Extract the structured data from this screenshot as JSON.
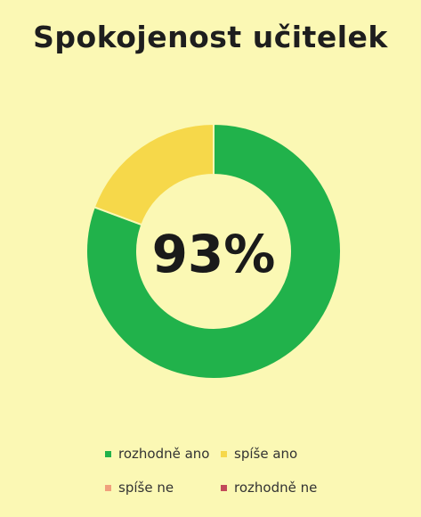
{
  "chart_data": {
    "type": "pie",
    "title": "Spokojenost učitelek",
    "center_label": "93%",
    "categories": [
      "rozhodně ano",
      "spíše ano",
      "spíše ne",
      "rozhodně ne"
    ],
    "values": [
      75,
      18,
      0,
      0
    ],
    "colors": [
      "#21b24b",
      "#f6d84a",
      "#f0a07c",
      "#c24a5a"
    ],
    "donut": true,
    "legend_position": "bottom"
  }
}
